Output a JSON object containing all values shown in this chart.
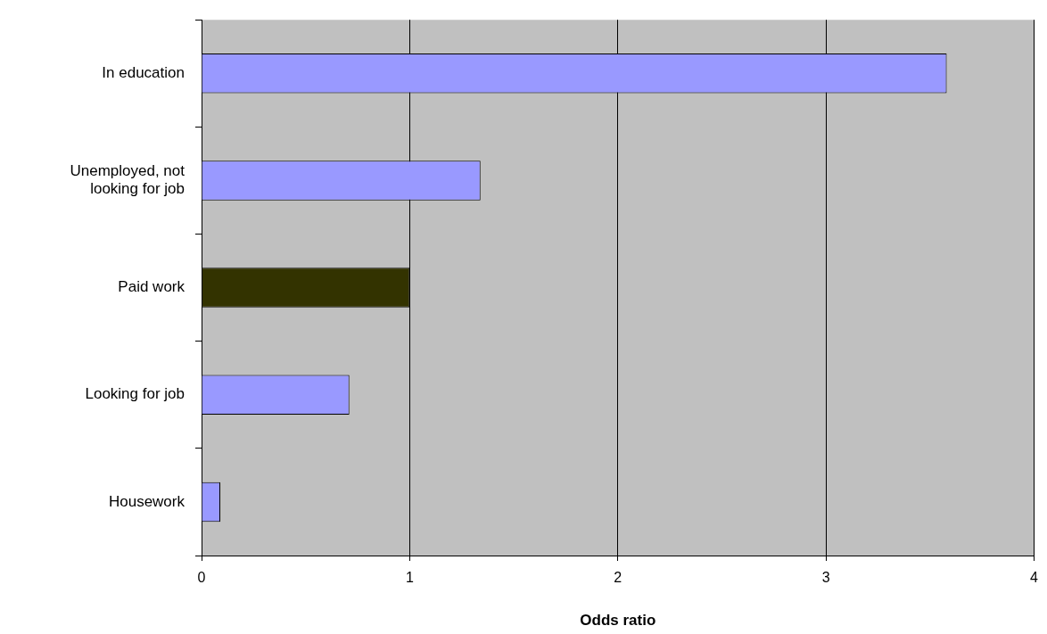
{
  "chart_data": {
    "type": "bar",
    "orientation": "horizontal",
    "xlabel": "Odds ratio",
    "categories": [
      "In education",
      "Unemployed, not looking for job",
      "Paid work",
      "Looking for job",
      "Housework"
    ],
    "values": [
      3.58,
      1.34,
      1.0,
      0.71,
      0.09
    ],
    "colors": [
      "#9999ff",
      "#9999ff",
      "#333300",
      "#9999ff",
      "#9999ff"
    ],
    "xlim": [
      0,
      4
    ],
    "xticks": [
      0,
      1,
      2,
      3,
      4
    ],
    "grid": "x",
    "legend": false
  }
}
